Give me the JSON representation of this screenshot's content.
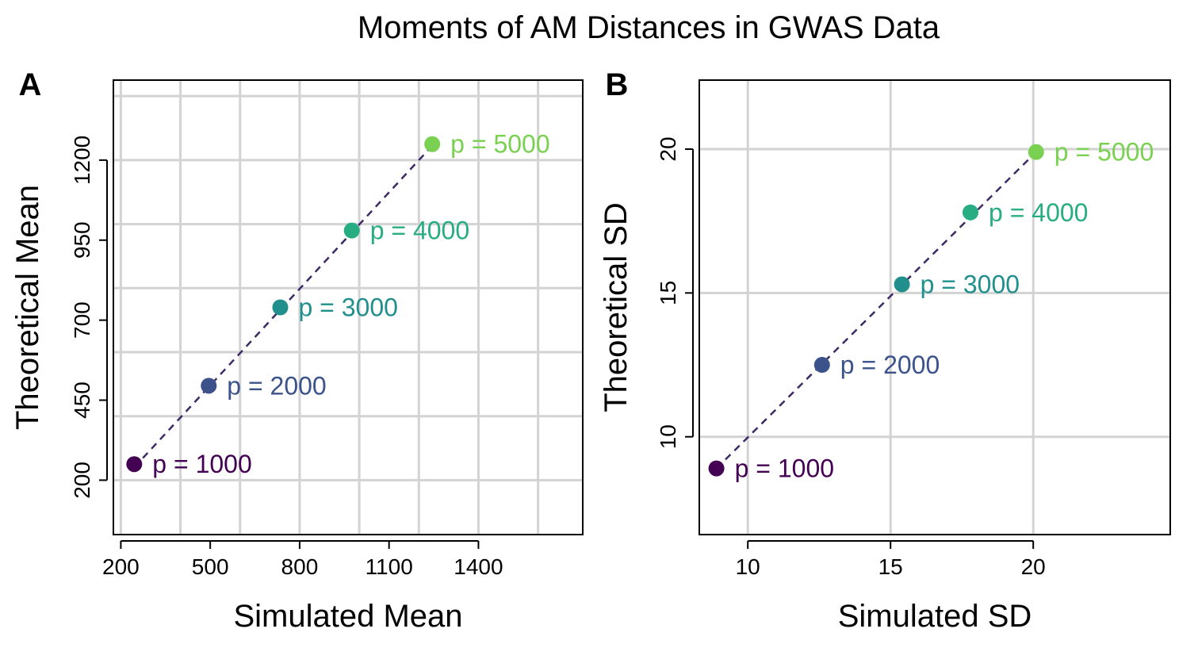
{
  "title": "Moments of AM Distances in GWAS Data",
  "chart_data": [
    {
      "panel": "A",
      "type": "scatter",
      "xlabel": "Simulated Mean",
      "ylabel": "Theoretical Mean",
      "xlim": [
        175,
        1750
      ],
      "ylim": [
        30,
        1450
      ],
      "xticks": [
        200,
        500,
        800,
        1100,
        1400
      ],
      "yticks": [
        200,
        450,
        700,
        950,
        1200
      ],
      "xgrid": [
        200,
        400,
        600,
        800,
        1000,
        1200,
        1400,
        1600
      ],
      "ygrid": [
        200,
        400,
        600,
        800,
        1000,
        1200,
        1400
      ],
      "grid": true,
      "points": [
        {
          "label": "p = 1000",
          "x": 245,
          "y": 250,
          "color": "#440154"
        },
        {
          "label": "p = 2000",
          "x": 495,
          "y": 495,
          "color": "#3b528b"
        },
        {
          "label": "p = 3000",
          "x": 735,
          "y": 740,
          "color": "#21908c"
        },
        {
          "label": "p = 4000",
          "x": 975,
          "y": 980,
          "color": "#27ad81"
        },
        {
          "label": "p = 5000",
          "x": 1245,
          "y": 1250,
          "color": "#7ad151"
        }
      ],
      "fit_line": {
        "x": [
          245,
          1245
        ],
        "y": [
          240,
          1245
        ],
        "color": "#3d2a66",
        "style": "dashed"
      }
    },
    {
      "panel": "B",
      "type": "scatter",
      "xlabel": "Simulated SD",
      "ylabel": "Theoretical SD",
      "xlim": [
        8.3,
        24.8
      ],
      "ylim": [
        6.6,
        22.4
      ],
      "xticks": [
        10,
        15,
        20
      ],
      "yticks": [
        10,
        15,
        20
      ],
      "xgrid": [
        10,
        15,
        20
      ],
      "ygrid": [
        10,
        15,
        20
      ],
      "grid": true,
      "points": [
        {
          "label": "p = 1000",
          "x": 8.9,
          "y": 8.9,
          "color": "#440154"
        },
        {
          "label": "p = 2000",
          "x": 12.6,
          "y": 12.5,
          "color": "#3b528b"
        },
        {
          "label": "p = 3000",
          "x": 15.4,
          "y": 15.3,
          "color": "#21908c"
        },
        {
          "label": "p = 4000",
          "x": 17.8,
          "y": 17.8,
          "color": "#27ad81"
        },
        {
          "label": "p = 5000",
          "x": 20.1,
          "y": 19.9,
          "color": "#7ad151"
        }
      ],
      "fit_line": {
        "x": [
          8.9,
          20.1
        ],
        "y": [
          8.9,
          19.9
        ],
        "color": "#3d2a66",
        "style": "dashed"
      }
    }
  ]
}
